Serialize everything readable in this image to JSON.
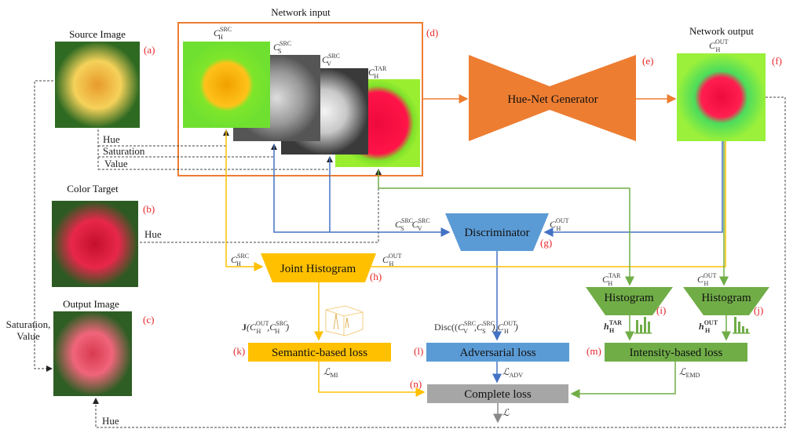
{
  "titles": {
    "network_input": "Network input",
    "source_image": "Source Image",
    "color_target": "Color Target",
    "output_image": "Output Image",
    "network_output": "Network output"
  },
  "channels": {
    "hue": "Hue",
    "saturation": "Saturation",
    "value": "Value",
    "target_hue": "Hue",
    "sat_value_1": "Saturation,",
    "sat_value_2": "Value",
    "bottom_hue": "Hue"
  },
  "blocks": {
    "generator": "Hue-Net Generator",
    "discriminator": "Discriminator",
    "joint_histogram": "Joint Histogram",
    "histogram_i": "Histogram",
    "histogram_j": "Histogram",
    "semantic_loss": "Semantic-based  loss",
    "adversarial_loss": "Adversarial  loss",
    "intensity_loss": "Intensity-based  loss",
    "complete_loss": "Complete loss"
  },
  "tags": {
    "a": "(a)",
    "b": "(b)",
    "c": "(c)",
    "d": "(d)",
    "e": "(e)",
    "f": "(f)",
    "g": "(g)",
    "h": "(h)",
    "i": "(i)",
    "j": "(j)",
    "k": "(k)",
    "l": "(l)",
    "m": "(m)",
    "n": "(n)"
  },
  "math": {
    "C": "C",
    "h": "h",
    "L": "ℒ",
    "J": "J",
    "SRC": "SRC",
    "TAR": "TAR",
    "OUT": "OUT",
    "H": "H",
    "S": "S",
    "V": "V",
    "MI": "MI",
    "ADV": "ADV",
    "EMD": "EMD",
    "disc": "Disc((",
    "comma": ",",
    "close1": "),",
    "close2": ")",
    "open": "("
  },
  "colors": {
    "orange": "#ed7d31",
    "blue": "#5b9bd5",
    "yellow": "#ffc000",
    "green": "#70ad47",
    "gray": "#a6a6a6",
    "tag_red": "#e8262a"
  }
}
